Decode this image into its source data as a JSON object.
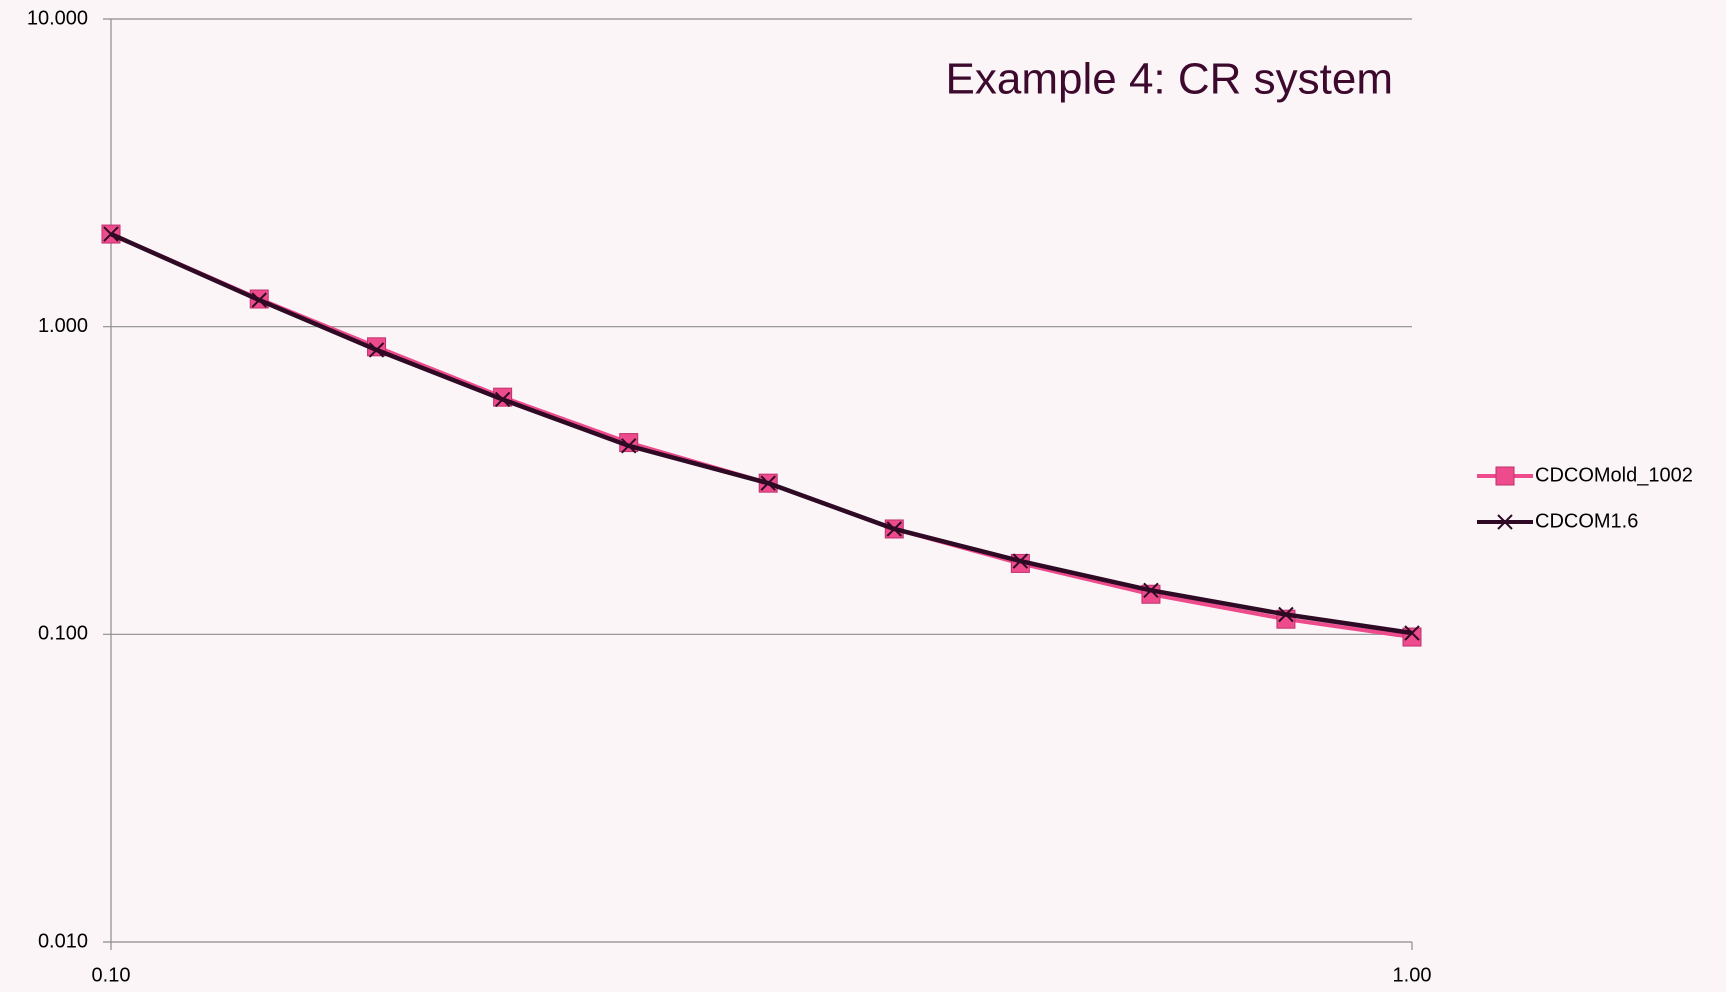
{
  "chart_data": {
    "type": "line",
    "title": "Example 4: CR system",
    "x": [
      0.1,
      0.13,
      0.16,
      0.2,
      0.25,
      0.32,
      0.4,
      0.5,
      0.63,
      0.8,
      1.0
    ],
    "series": [
      {
        "name": "CDCOMold_1002",
        "color": "#ee4b8c",
        "marker": "square",
        "values": [
          2.0,
          1.23,
          0.86,
          0.59,
          0.42,
          0.31,
          0.22,
          0.17,
          0.135,
          0.112,
          0.098
        ]
      },
      {
        "name": "CDCOM1.6",
        "color": "#2e0a24",
        "marker": "x",
        "values": [
          2.0,
          1.22,
          0.84,
          0.58,
          0.41,
          0.31,
          0.22,
          0.173,
          0.139,
          0.116,
          0.101
        ]
      }
    ],
    "xlim": [
      0.1,
      1.0
    ],
    "xticks": [
      {
        "value": 0.1,
        "label": "0.10"
      },
      {
        "value": 1.0,
        "label": "1.00"
      }
    ],
    "ylim": [
      0.01,
      10
    ],
    "yticks": [
      {
        "value": 0.01,
        "label": "0.010"
      },
      {
        "value": 0.1,
        "label": "0.100"
      },
      {
        "value": 1,
        "label": "1.000"
      },
      {
        "value": 10,
        "label": "10.000"
      }
    ],
    "xscale": "log",
    "yscale": "log",
    "grid": true,
    "legend": "right"
  }
}
